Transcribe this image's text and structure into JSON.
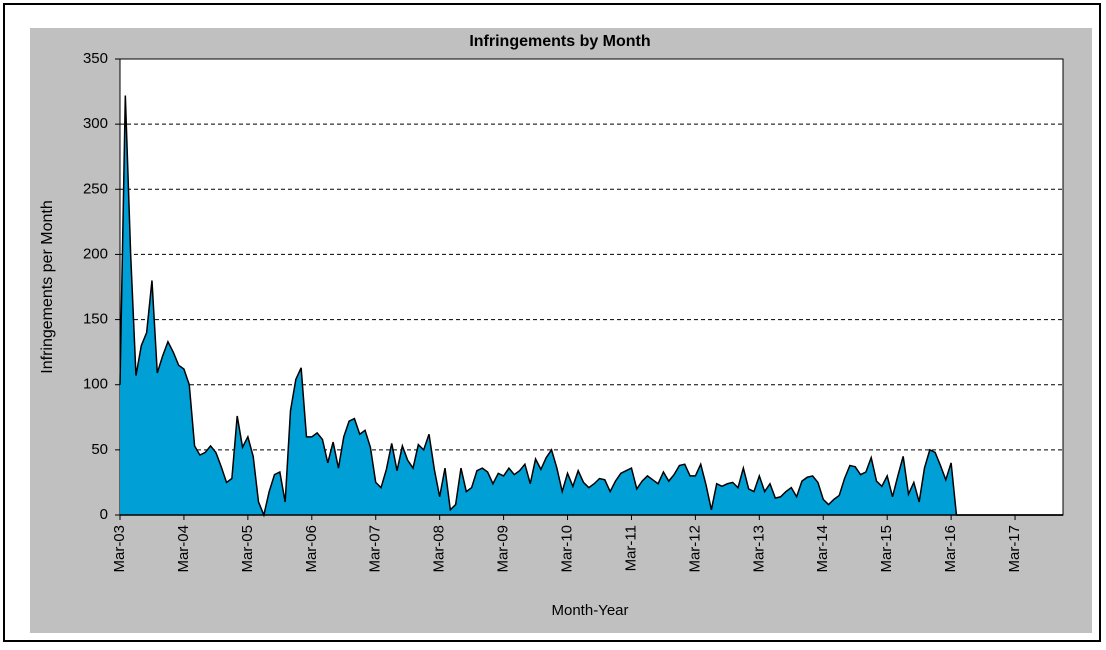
{
  "chart_data": {
    "type": "area",
    "title": "Infringements by Month",
    "x_label": "Month-Year",
    "y_label": "Infringements per Month",
    "categories": [
      "Mar-03",
      null,
      null,
      null,
      null,
      null,
      null,
      null,
      null,
      null,
      null,
      null,
      "Mar-04",
      null,
      null,
      null,
      null,
      null,
      null,
      null,
      null,
      null,
      null,
      null,
      "Mar-05",
      null,
      null,
      null,
      null,
      null,
      null,
      null,
      null,
      null,
      null,
      null,
      "Mar-06",
      null,
      null,
      null,
      null,
      null,
      null,
      null,
      null,
      null,
      null,
      null,
      "Mar-07",
      null,
      null,
      null,
      null,
      null,
      null,
      null,
      null,
      null,
      null,
      null,
      "Mar-08",
      null,
      null,
      null,
      null,
      null,
      null,
      null,
      null,
      null,
      null,
      null,
      "Mar-09",
      null,
      null,
      null,
      null,
      null,
      null,
      null,
      null,
      null,
      null,
      null,
      "Mar-10",
      null,
      null,
      null,
      null,
      null,
      null,
      null,
      null,
      null,
      null,
      null,
      "Mar-11",
      null,
      null,
      null,
      null,
      null,
      null,
      null,
      null,
      null,
      null,
      null,
      "Mar-12",
      null,
      null,
      null,
      null,
      null,
      null,
      null,
      null,
      null,
      null,
      null,
      "Mar-13",
      null,
      null,
      null,
      null,
      null,
      null,
      null,
      null,
      null,
      null,
      null,
      "Mar-14",
      null,
      null,
      null,
      null,
      null,
      null,
      null,
      null,
      null,
      null,
      null,
      "Mar-15",
      null,
      null,
      null,
      null,
      null,
      null,
      null,
      null,
      null,
      null,
      null,
      "Mar-16",
      null,
      null,
      null,
      null,
      null,
      null,
      null,
      null,
      null,
      null,
      null,
      "Mar-17",
      null,
      null,
      null,
      null,
      null,
      null,
      null,
      null,
      null
    ],
    "values": [
      100,
      322,
      200,
      107,
      130,
      140,
      180,
      109,
      122,
      133,
      125,
      115,
      112,
      100,
      53,
      46,
      48,
      53,
      48,
      37,
      25,
      28,
      76,
      52,
      60,
      45,
      10,
      0,
      18,
      31,
      33,
      10,
      80,
      104,
      113,
      60,
      60,
      63,
      58,
      40,
      56,
      36,
      60,
      72,
      74,
      62,
      65,
      52,
      25,
      21,
      35,
      55,
      34,
      53,
      42,
      36,
      54,
      50,
      62,
      35,
      14,
      36,
      4,
      8,
      36,
      18,
      21,
      34,
      36,
      33,
      24,
      32,
      30,
      36,
      31,
      34,
      39,
      24,
      43,
      35,
      44,
      50,
      36,
      18,
      32,
      22,
      34,
      25,
      21,
      24,
      28,
      27,
      18,
      26,
      32,
      34,
      36,
      20,
      26,
      30,
      27,
      24,
      33,
      26,
      31,
      38,
      39,
      30,
      30,
      39,
      23,
      4,
      24,
      22,
      24,
      25,
      21,
      36,
      20,
      18,
      30,
      18,
      24,
      13,
      14,
      18,
      21,
      14,
      26,
      29,
      30,
      25,
      12,
      8,
      12,
      15,
      28,
      38,
      37,
      31,
      33,
      44,
      26,
      22,
      30,
      14,
      30,
      45,
      16,
      25,
      10,
      36,
      50,
      48,
      38,
      27,
      40,
      0,
      0,
      0,
      0,
      0,
      0,
      0,
      0,
      0,
      0,
      0,
      0,
      0,
      0,
      0,
      0,
      0,
      0,
      0,
      0,
      0
    ],
    "color": "#009fd6",
    "ylim": [
      0,
      350
    ],
    "yticks": [
      0,
      50,
      100,
      150,
      200,
      250,
      300,
      350
    ],
    "grid": true
  }
}
